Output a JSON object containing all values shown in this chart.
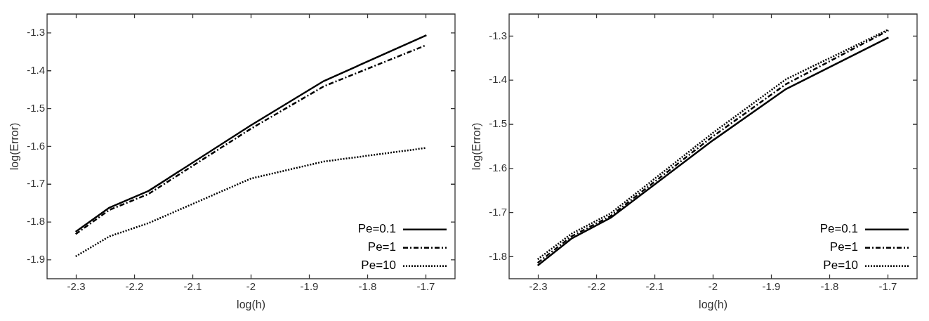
{
  "chart_data": [
    {
      "type": "line",
      "xlabel": "log(h)",
      "ylabel": "log(Error)",
      "x": [
        -2.301,
        -2.243,
        -2.176,
        -2,
        -1.875,
        -1.699
      ],
      "xlim": [
        -2.35,
        -1.65
      ],
      "xticks": [
        -2.3,
        -2.2,
        -2.1,
        -2,
        -1.9,
        -1.8,
        -1.7
      ],
      "ylim": [
        -1.95,
        -1.25
      ],
      "yticks": [
        -1.9,
        -1.8,
        -1.7,
        -1.6,
        -1.5,
        -1.4,
        -1.3
      ],
      "grid": false,
      "legend": "bottom right",
      "marker": "none",
      "series": [
        {
          "name": "Pe=0.1",
          "color": "#000000",
          "line_style": "solid",
          "values": [
            -1.826,
            -1.762,
            -1.718,
            -1.544,
            -1.427,
            -1.306
          ]
        },
        {
          "name": "Pe=1",
          "color": "#000000",
          "line_style": "dashed",
          "values": [
            -1.832,
            -1.768,
            -1.726,
            -1.553,
            -1.441,
            -1.332
          ]
        },
        {
          "name": "Pe=10",
          "color": "#000000",
          "line_style": "dotted",
          "values": [
            -1.891,
            -1.838,
            -1.803,
            -1.685,
            -1.64,
            -1.604
          ]
        }
      ]
    },
    {
      "type": "line",
      "xlabel": "log(h)",
      "ylabel": "log(Error)",
      "x": [
        -2.301,
        -2.243,
        -2.176,
        -2,
        -1.875,
        -1.699
      ],
      "xlim": [
        -2.35,
        -1.65
      ],
      "xticks": [
        -2.3,
        -2.2,
        -2.1,
        -2,
        -1.9,
        -1.8,
        -1.7
      ],
      "ylim": [
        -1.85,
        -1.25
      ],
      "yticks": [
        -1.8,
        -1.7,
        -1.6,
        -1.5,
        -1.4,
        -1.3
      ],
      "grid": false,
      "legend": "bottom right",
      "marker": "none",
      "series": [
        {
          "name": "Pe=0.1",
          "color": "#000000",
          "line_style": "solid",
          "values": [
            -1.82,
            -1.759,
            -1.712,
            -1.536,
            -1.42,
            -1.303
          ]
        },
        {
          "name": "Pe=1",
          "color": "#000000",
          "line_style": "dashed",
          "values": [
            -1.814,
            -1.754,
            -1.708,
            -1.527,
            -1.409,
            -1.287
          ]
        },
        {
          "name": "Pe=10",
          "color": "#000000",
          "line_style": "dotted",
          "values": [
            -1.806,
            -1.748,
            -1.702,
            -1.519,
            -1.398,
            -1.285
          ]
        }
      ]
    }
  ]
}
